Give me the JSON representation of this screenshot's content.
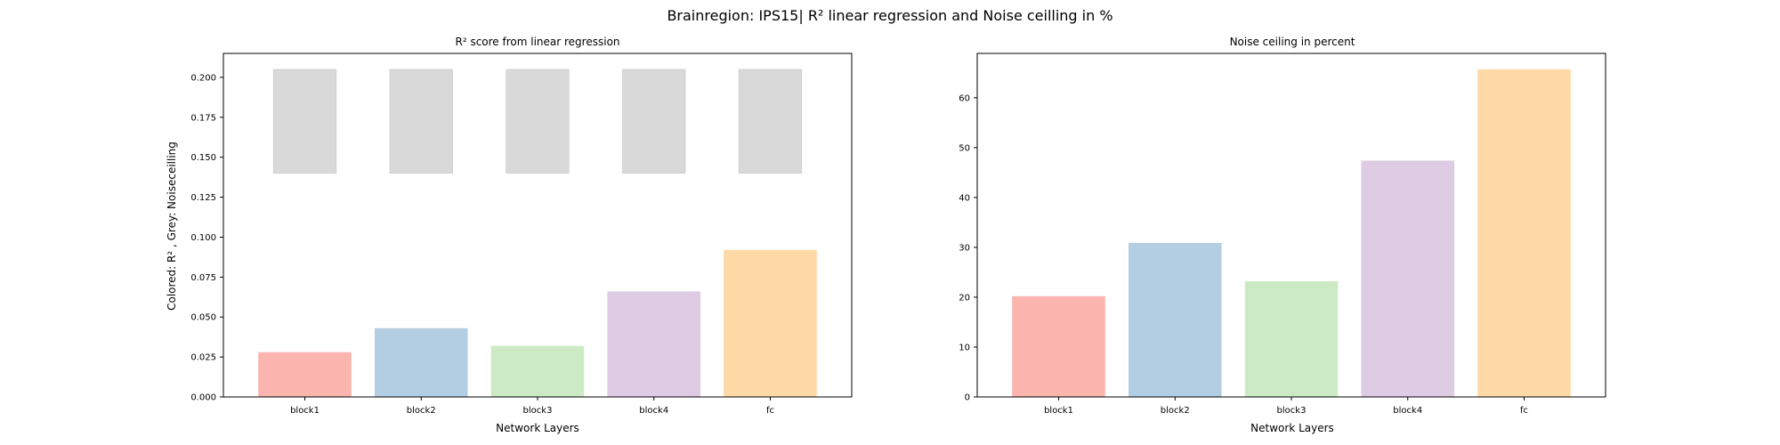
{
  "figure": {
    "suptitle": "Brainregion: IPS15| R² linear regression and Noise ceilling in %"
  },
  "chart_data": [
    {
      "type": "bar",
      "title": "R² score from linear regression",
      "xlabel": "Network Layers",
      "ylabel": "Colored: R² , Grey: Noiseceilling",
      "categories": [
        "block1",
        "block2",
        "block3",
        "block4",
        "fc"
      ],
      "series": [
        {
          "values": [
            0.028,
            0.043,
            0.032,
            0.066,
            0.092
          ],
          "colors": [
            "#fbb4ae",
            "#b3cde3",
            "#ccebc5",
            "#decbe4",
            "#fed9a6"
          ]
        }
      ],
      "noise_ceiling_range": {
        "lower": 0.14,
        "upper": 0.205,
        "color": "#d9d9d9"
      },
      "ylim": [
        0,
        0.215
      ],
      "yticks": [
        0.0,
        0.025,
        0.05,
        0.075,
        0.1,
        0.125,
        0.15,
        0.175,
        0.2
      ],
      "ytick_labels": [
        "0.000",
        "0.025",
        "0.050",
        "0.075",
        "0.100",
        "0.125",
        "0.150",
        "0.175",
        "0.200"
      ],
      "grid": false
    },
    {
      "type": "bar",
      "title": "Noise ceiling in percent",
      "xlabel": "Network Layers",
      "ylabel": "",
      "categories": [
        "block1",
        "block2",
        "block3",
        "block4",
        "fc"
      ],
      "series": [
        {
          "values": [
            20.2,
            30.9,
            23.2,
            47.4,
            65.7
          ],
          "colors": [
            "#fbb4ae",
            "#b3cde3",
            "#ccebc5",
            "#decbe4",
            "#fed9a6"
          ]
        }
      ],
      "ylim": [
        0,
        68.9
      ],
      "yticks": [
        0,
        10,
        20,
        30,
        40,
        50,
        60
      ],
      "ytick_labels": [
        "0",
        "10",
        "20",
        "30",
        "40",
        "50",
        "60"
      ],
      "grid": false
    }
  ]
}
